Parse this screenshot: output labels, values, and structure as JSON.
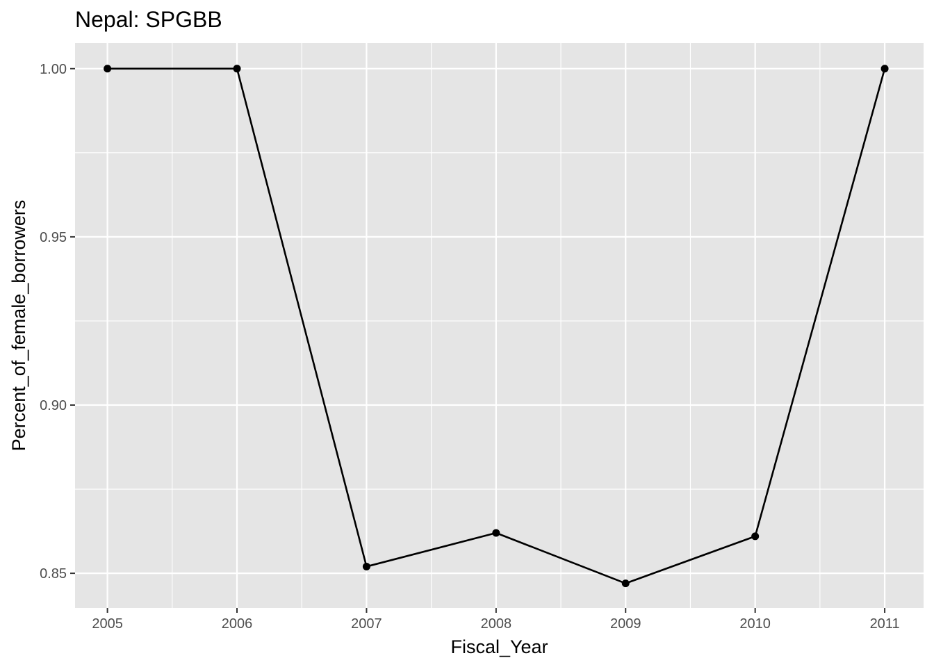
{
  "chart_data": {
    "type": "line",
    "title": "Nepal:  SPGBB",
    "xlabel": "Fiscal_Year",
    "ylabel": "Percent_of_female_borrowers",
    "x": [
      2005,
      2006,
      2007,
      2008,
      2009,
      2010,
      2011
    ],
    "y": [
      1.0,
      1.0,
      0.852,
      0.862,
      0.847,
      0.861,
      1.0
    ],
    "x_ticks": [
      "2005",
      "2006",
      "2007",
      "2008",
      "2009",
      "2010",
      "2011"
    ],
    "y_ticks": [
      "0.85",
      "0.90",
      "0.95",
      "1.00"
    ],
    "xlim": [
      2004.75,
      2011.3
    ],
    "ylim": [
      0.8397,
      1.0076
    ],
    "grid": true,
    "legend": "none",
    "colors": {
      "panel": "#e5e5e5",
      "grid": "#ffffff",
      "line": "#000000",
      "point": "#000000"
    }
  }
}
